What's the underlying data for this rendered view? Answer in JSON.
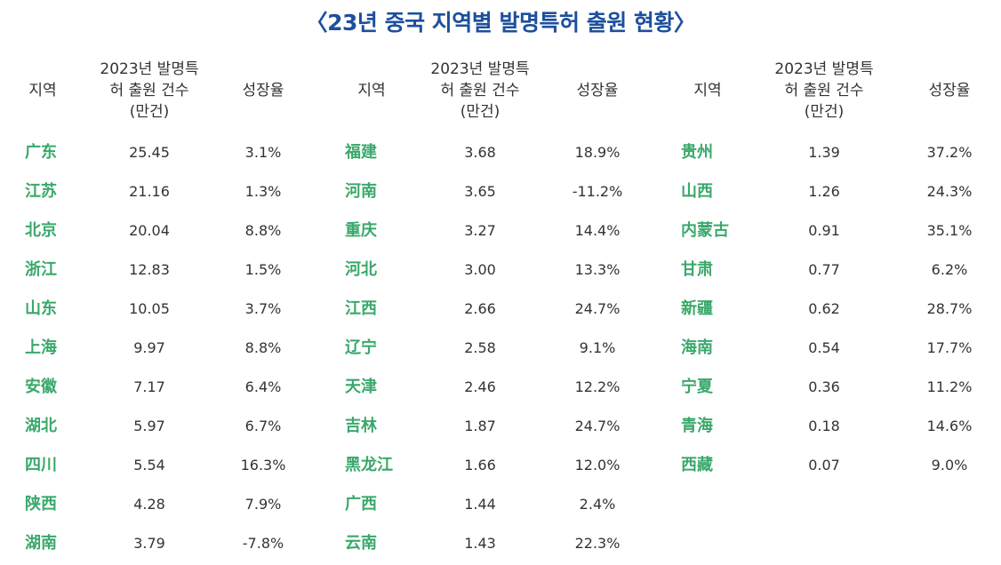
{
  "title": "〈23년 중국 지역별 발명특허 출원 현황〉",
  "headers": {
    "region": "지역",
    "count_line1": "2023년 발명특",
    "count_line2": "허 출원 건수",
    "count_line3": "(만건)",
    "growth": "성장율"
  },
  "colors": {
    "title": "#1d4f9c",
    "region": "#3aa86b"
  },
  "tables": [
    {
      "rows": [
        {
          "region": "广东",
          "count": "25.45",
          "growth": "3.1%"
        },
        {
          "region": "江苏",
          "count": "21.16",
          "growth": "1.3%"
        },
        {
          "region": "北京",
          "count": "20.04",
          "growth": "8.8%"
        },
        {
          "region": "浙江",
          "count": "12.83",
          "growth": "1.5%"
        },
        {
          "region": "山东",
          "count": "10.05",
          "growth": "3.7%"
        },
        {
          "region": "上海",
          "count": "9.97",
          "growth": "8.8%"
        },
        {
          "region": "安徽",
          "count": "7.17",
          "growth": "6.4%"
        },
        {
          "region": "湖北",
          "count": "5.97",
          "growth": "6.7%"
        },
        {
          "region": "四川",
          "count": "5.54",
          "growth": "16.3%"
        },
        {
          "region": "陕西",
          "count": "4.28",
          "growth": "7.9%"
        },
        {
          "region": "湖南",
          "count": "3.79",
          "growth": "-7.8%"
        }
      ]
    },
    {
      "rows": [
        {
          "region": "福建",
          "count": "3.68",
          "growth": "18.9%"
        },
        {
          "region": "河南",
          "count": "3.65",
          "growth": "-11.2%"
        },
        {
          "region": "重庆",
          "count": "3.27",
          "growth": "14.4%"
        },
        {
          "region": "河北",
          "count": "3.00",
          "growth": "13.3%"
        },
        {
          "region": "江西",
          "count": "2.66",
          "growth": "24.7%"
        },
        {
          "region": "辽宁",
          "count": "2.58",
          "growth": "9.1%"
        },
        {
          "region": "天津",
          "count": "2.46",
          "growth": "12.2%"
        },
        {
          "region": "吉林",
          "count": "1.87",
          "growth": "24.7%"
        },
        {
          "region": "黑龙江",
          "count": "1.66",
          "growth": "12.0%"
        },
        {
          "region": "广西",
          "count": "1.44",
          "growth": "2.4%"
        },
        {
          "region": "云南",
          "count": "1.43",
          "growth": "22.3%"
        }
      ]
    },
    {
      "rows": [
        {
          "region": "贵州",
          "count": "1.39",
          "growth": "37.2%"
        },
        {
          "region": "山西",
          "count": "1.26",
          "growth": "24.3%"
        },
        {
          "region": "内蒙古",
          "count": "0.91",
          "growth": "35.1%"
        },
        {
          "region": "甘肃",
          "count": "0.77",
          "growth": "6.2%"
        },
        {
          "region": "新疆",
          "count": "0.62",
          "growth": "28.7%"
        },
        {
          "region": "海南",
          "count": "0.54",
          "growth": "17.7%"
        },
        {
          "region": "宁夏",
          "count": "0.36",
          "growth": "11.2%"
        },
        {
          "region": "青海",
          "count": "0.18",
          "growth": "14.6%"
        },
        {
          "region": "西藏",
          "count": "0.07",
          "growth": "9.0%"
        }
      ]
    }
  ]
}
